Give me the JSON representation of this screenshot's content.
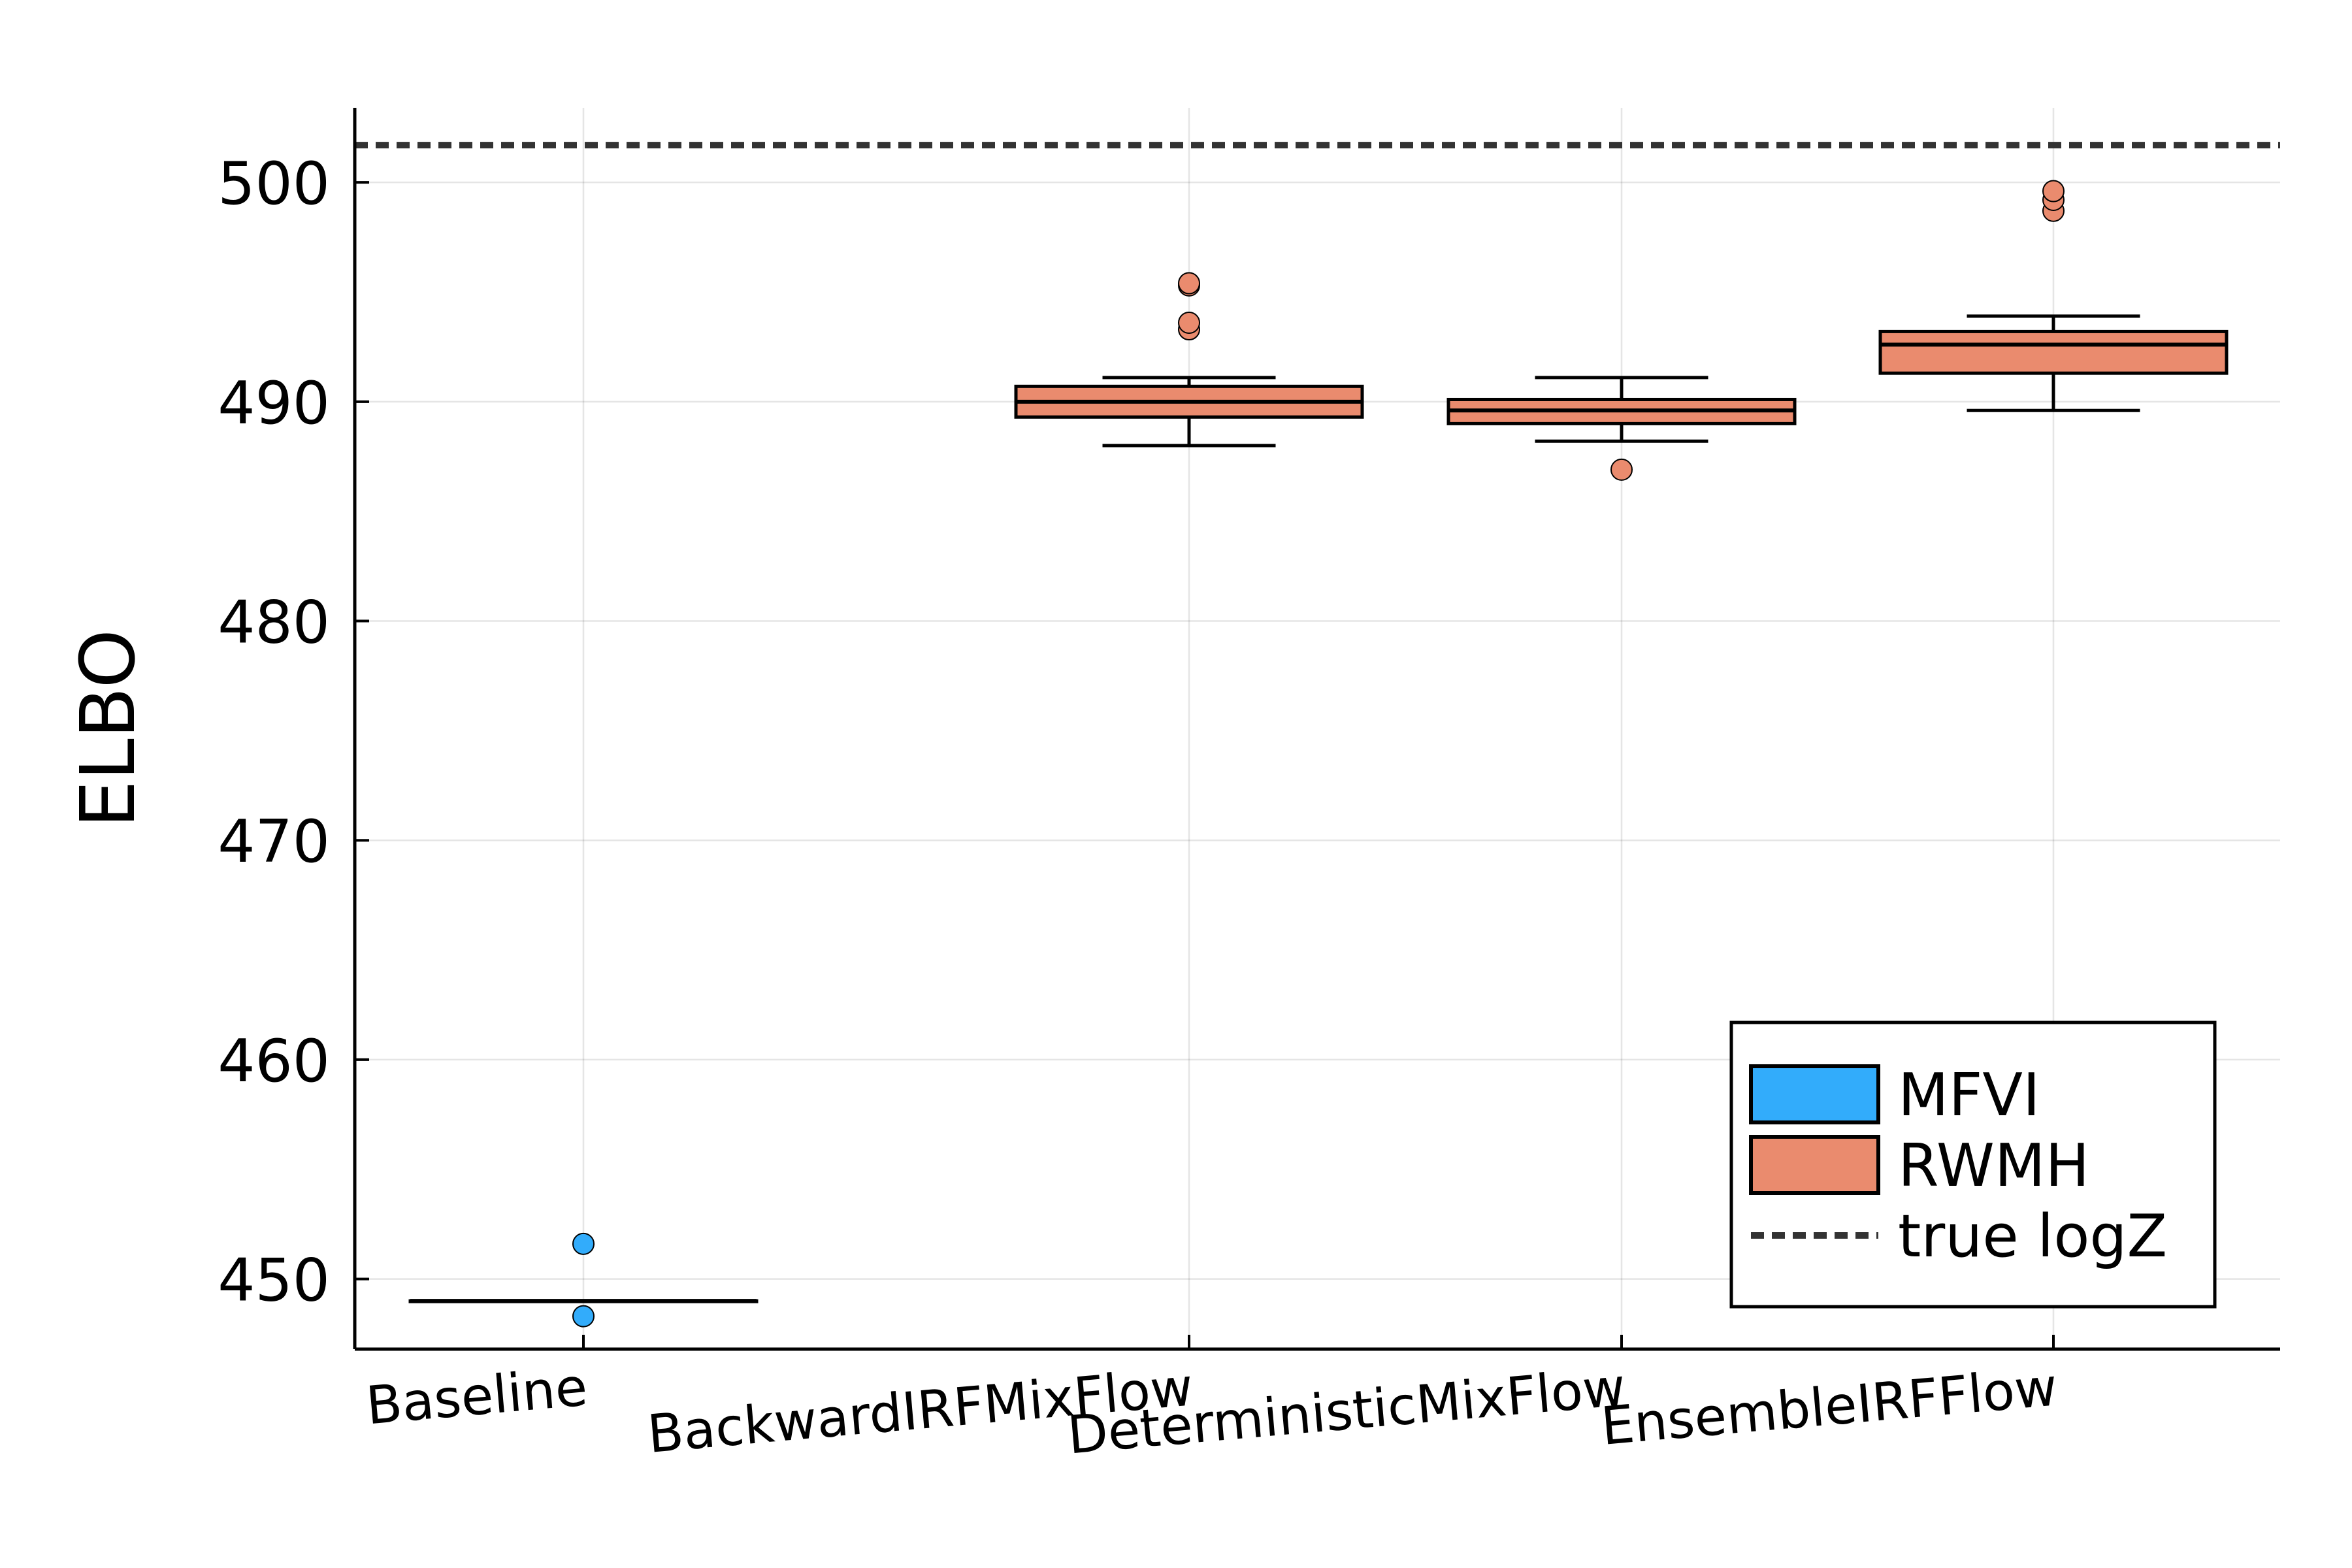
{
  "chart_data": {
    "type": "box",
    "ylabel": "ELBO",
    "ylim": [
      446.8,
      503.4
    ],
    "yticks": [
      450,
      460,
      470,
      480,
      490,
      500
    ],
    "ytick_labels": [
      "450",
      "460",
      "470",
      "480",
      "490",
      "500"
    ],
    "categories": [
      "Baseline",
      "BackwardIRFMixFlow",
      "DeterministicMixFlow",
      "EnsembleIRFFlow"
    ],
    "grid": true,
    "legend_position": "bottom-right",
    "series": [
      {
        "name": "MFVI",
        "color": "#32acfb",
        "boxes": [
          {
            "category": "Baseline",
            "whisker_low": 449.0,
            "q1": 449.0,
            "median": 449.0,
            "q3": 449.0,
            "whisker_high": 449.0,
            "outliers": [
              451.6,
              448.3
            ]
          }
        ]
      },
      {
        "name": "RWMH",
        "color": "#ea8b6e",
        "boxes": [
          {
            "category": "BackwardIRFMixFlow",
            "whisker_low": 488.0,
            "q1": 489.3,
            "median": 490.0,
            "q3": 490.7,
            "whisker_high": 491.1,
            "outliers": [
              493.3,
              493.6,
              495.3,
              495.4
            ]
          },
          {
            "category": "DeterministicMixFlow",
            "whisker_low": 488.2,
            "q1": 489.0,
            "median": 489.6,
            "q3": 490.1,
            "whisker_high": 491.1,
            "outliers": [
              486.9
            ]
          },
          {
            "category": "EnsembleIRFFlow",
            "whisker_low": 489.6,
            "q1": 491.3,
            "median": 492.6,
            "q3": 493.2,
            "whisker_high": 493.9,
            "outliers": [
              498.7,
              499.2,
              499.6
            ]
          }
        ]
      }
    ],
    "reference_lines": [
      {
        "name": "true logZ",
        "y": 501.7,
        "style": "dashed",
        "color": "#333333"
      }
    ]
  }
}
